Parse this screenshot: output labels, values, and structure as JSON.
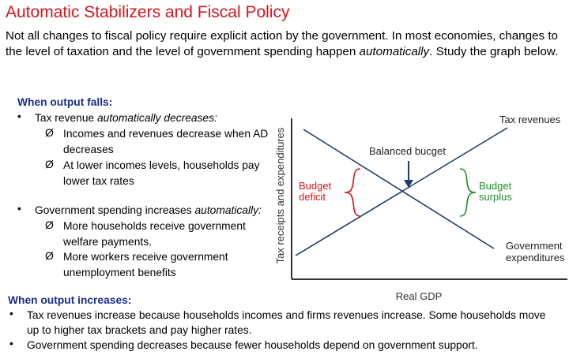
{
  "title": "Automatic Stabilizers and Fiscal Policy",
  "intro": {
    "lead": "Not all changes to fiscal policy require explicit action by the government. In most economies, changes to the level of taxation and the level of government spending happen ",
    "emphasis": "automatically",
    "trail": ". Study the graph below."
  },
  "falls": {
    "heading": "When output falls:",
    "bullet_char": "•",
    "arrow_char": "Ø",
    "tax": {
      "lead": "Tax revenue ",
      "emphasis": "automatically decreases:",
      "sub1": [
        "Incomes and revenues decrease when AD",
        "decreases"
      ],
      "sub2": [
        "At lower incomes levels, households pay",
        "lower tax rates"
      ]
    },
    "spending": {
      "lead": "Government spending increases ",
      "emphasis": "automatically:",
      "sub1": [
        "More households receive government",
        "welfare payments."
      ],
      "sub2": [
        "More workers receive government",
        "unemployment benefits"
      ]
    }
  },
  "increases": {
    "heading": "When output increases:",
    "bullet_char": "•",
    "b1": [
      "Tax revenues increase because households incomes and firms revenues increase. Some households move",
      "up to higher tax brackets and pay higher rates."
    ],
    "b2": "Government spending decreases because fewer households depend on government support."
  },
  "graph": {
    "y_axis": "Tax receipts and expenditures",
    "x_axis": "Real GDP",
    "tax_label": "Tax revenues",
    "balanced_label": "Balanced bucget",
    "deficit_label": [
      "Budget",
      "deficit"
    ],
    "surplus_label": [
      "Budget",
      "surplus"
    ],
    "gov_label": [
      "Government",
      "expenditures"
    ],
    "colors": {
      "deficit": "#d4161d",
      "surplus": "#1e8f2a",
      "lines": "#1f3a6b",
      "axis": "#333333"
    }
  }
}
